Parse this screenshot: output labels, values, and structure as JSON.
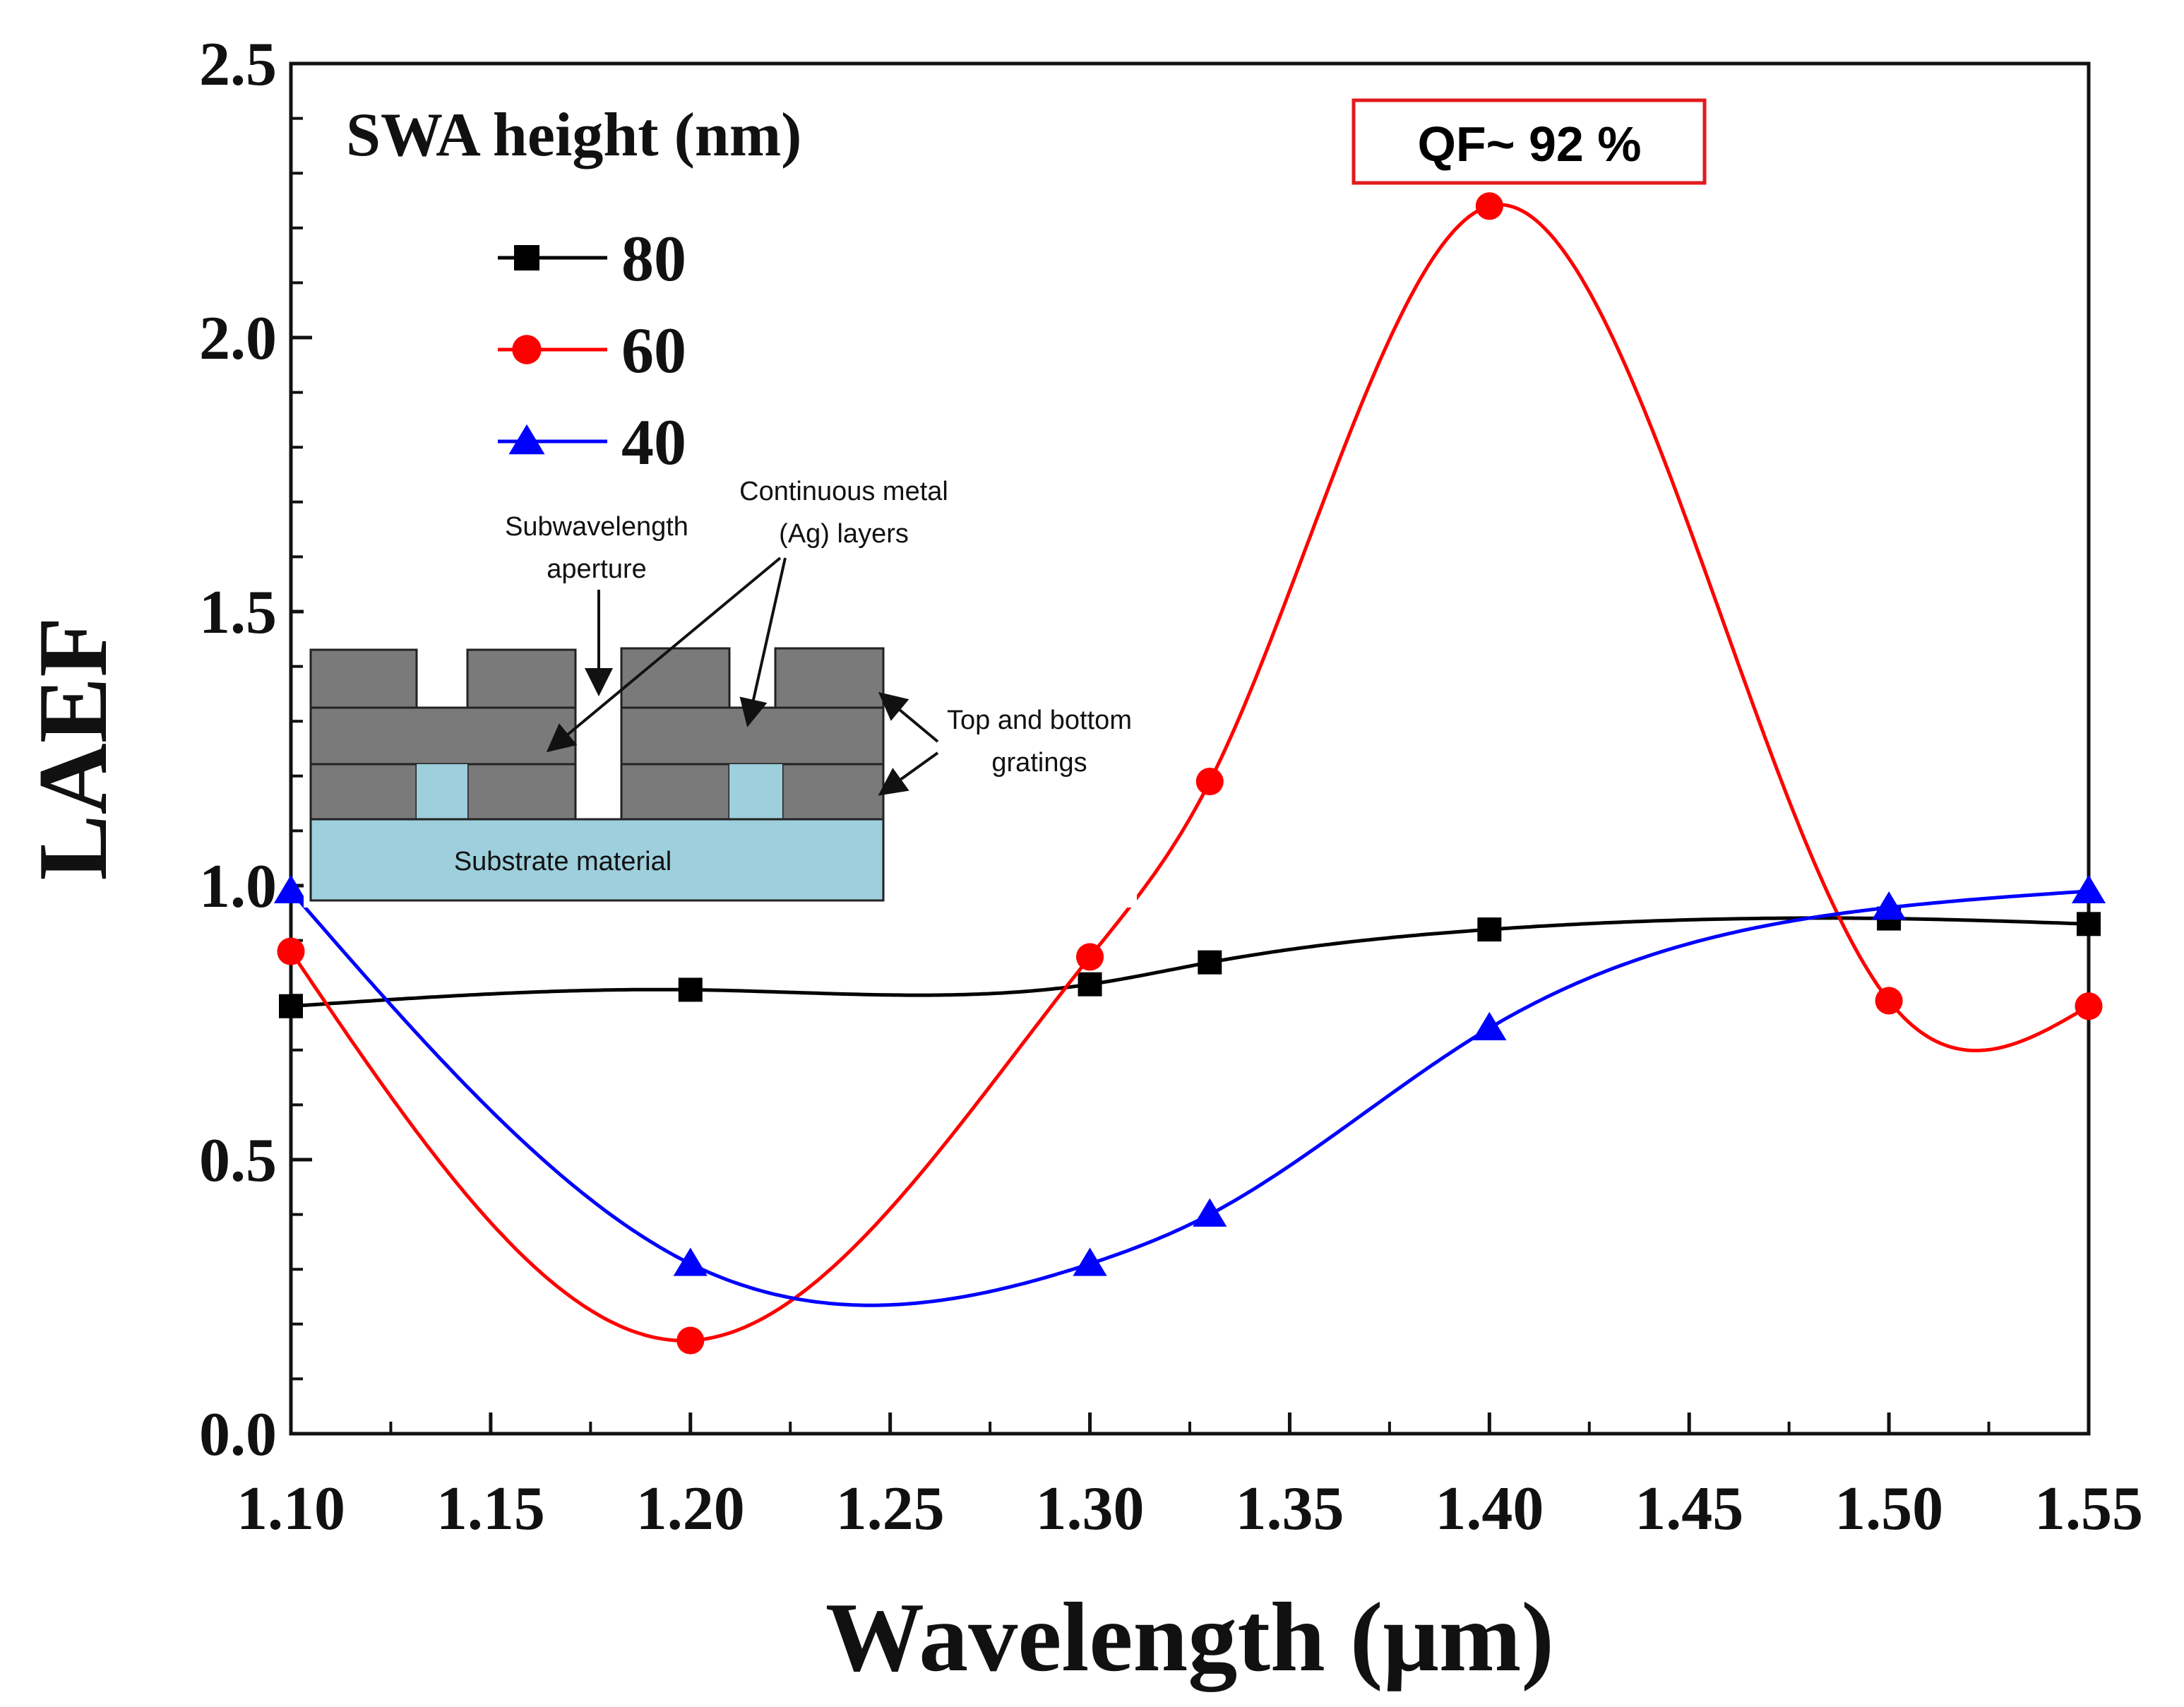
{
  "chart_data": {
    "type": "line",
    "title": "",
    "xlabel": "Wavelength (μm)",
    "ylabel": "LAEF",
    "xlim": [
      1.1,
      1.55
    ],
    "ylim": [
      0.0,
      2.5
    ],
    "x_ticks": [
      "1.10",
      "1.15",
      "1.20",
      "1.25",
      "1.30",
      "1.35",
      "1.40",
      "1.45",
      "1.50",
      "1.55"
    ],
    "y_ticks": [
      "0.0",
      "0.5",
      "1.0",
      "1.5",
      "2.0",
      "2.5"
    ],
    "legend_title": "SWA height (nm)",
    "legend_position": "top-left",
    "series": [
      {
        "name": "80",
        "color": "#000000",
        "marker": "square",
        "x": [
          1.1,
          1.2,
          1.3,
          1.33,
          1.4,
          1.5,
          1.55
        ],
        "y": [
          0.78,
          0.81,
          0.82,
          0.86,
          0.92,
          0.94,
          0.93
        ]
      },
      {
        "name": "60",
        "color": "#ff0000",
        "marker": "circle",
        "x": [
          1.1,
          1.2,
          1.3,
          1.33,
          1.4,
          1.5,
          1.55
        ],
        "y": [
          0.88,
          0.17,
          0.87,
          1.19,
          2.24,
          0.79,
          0.78
        ]
      },
      {
        "name": "40",
        "color": "#0000ff",
        "marker": "triangle",
        "x": [
          1.1,
          1.2,
          1.3,
          1.33,
          1.4,
          1.5,
          1.55
        ],
        "y": [
          0.99,
          0.31,
          0.31,
          0.4,
          0.74,
          0.96,
          0.99
        ]
      }
    ],
    "annotation": {
      "text": "QF~ 92 %",
      "color": "#e31a1c"
    }
  },
  "inset": {
    "label_aperture": [
      "Subwavelength",
      "aperture"
    ],
    "label_metal": [
      "Continuous metal",
      "(Ag) layers"
    ],
    "label_gratings": [
      "Top and bottom",
      "gratings"
    ],
    "label_substrate": "Substrate material",
    "colors": {
      "metal": "#7a7a7a",
      "substrate": "#9dcfdc"
    }
  }
}
